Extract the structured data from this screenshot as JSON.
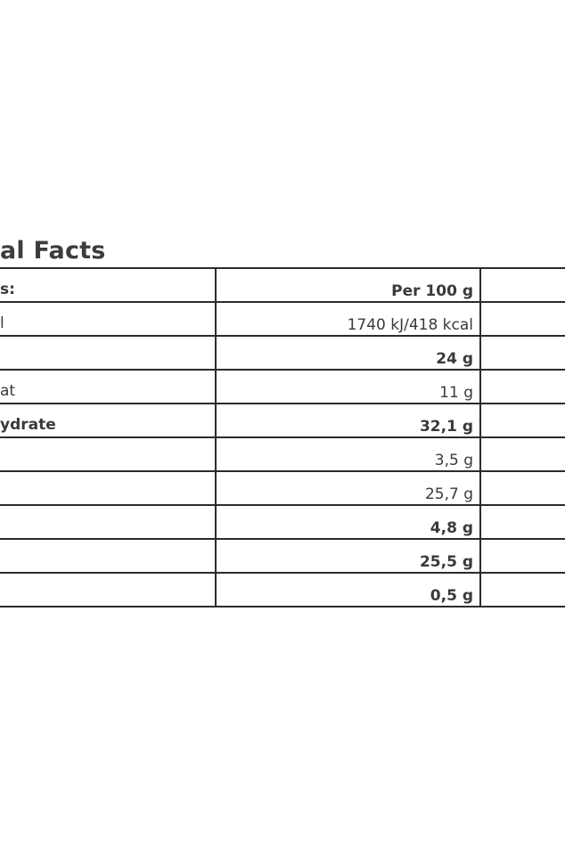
{
  "title": "al Facts",
  "header": {
    "label": "s:",
    "value": "Per 100 g"
  },
  "rows": [
    {
      "label": "l",
      "value": "1740 kJ/418 kcal"
    },
    {
      "label": "",
      "value": "24 g"
    },
    {
      "label": "at",
      "value": "11 g"
    },
    {
      "label": "ydrate",
      "value": "32,1 g"
    },
    {
      "label": "",
      "value": "3,5 g"
    },
    {
      "label": "",
      "value": "25,7 g"
    },
    {
      "label": "",
      "value": "4,8 g"
    },
    {
      "label": "",
      "value": "25,5 g"
    },
    {
      "label": "",
      "value": "0,5 g"
    }
  ]
}
